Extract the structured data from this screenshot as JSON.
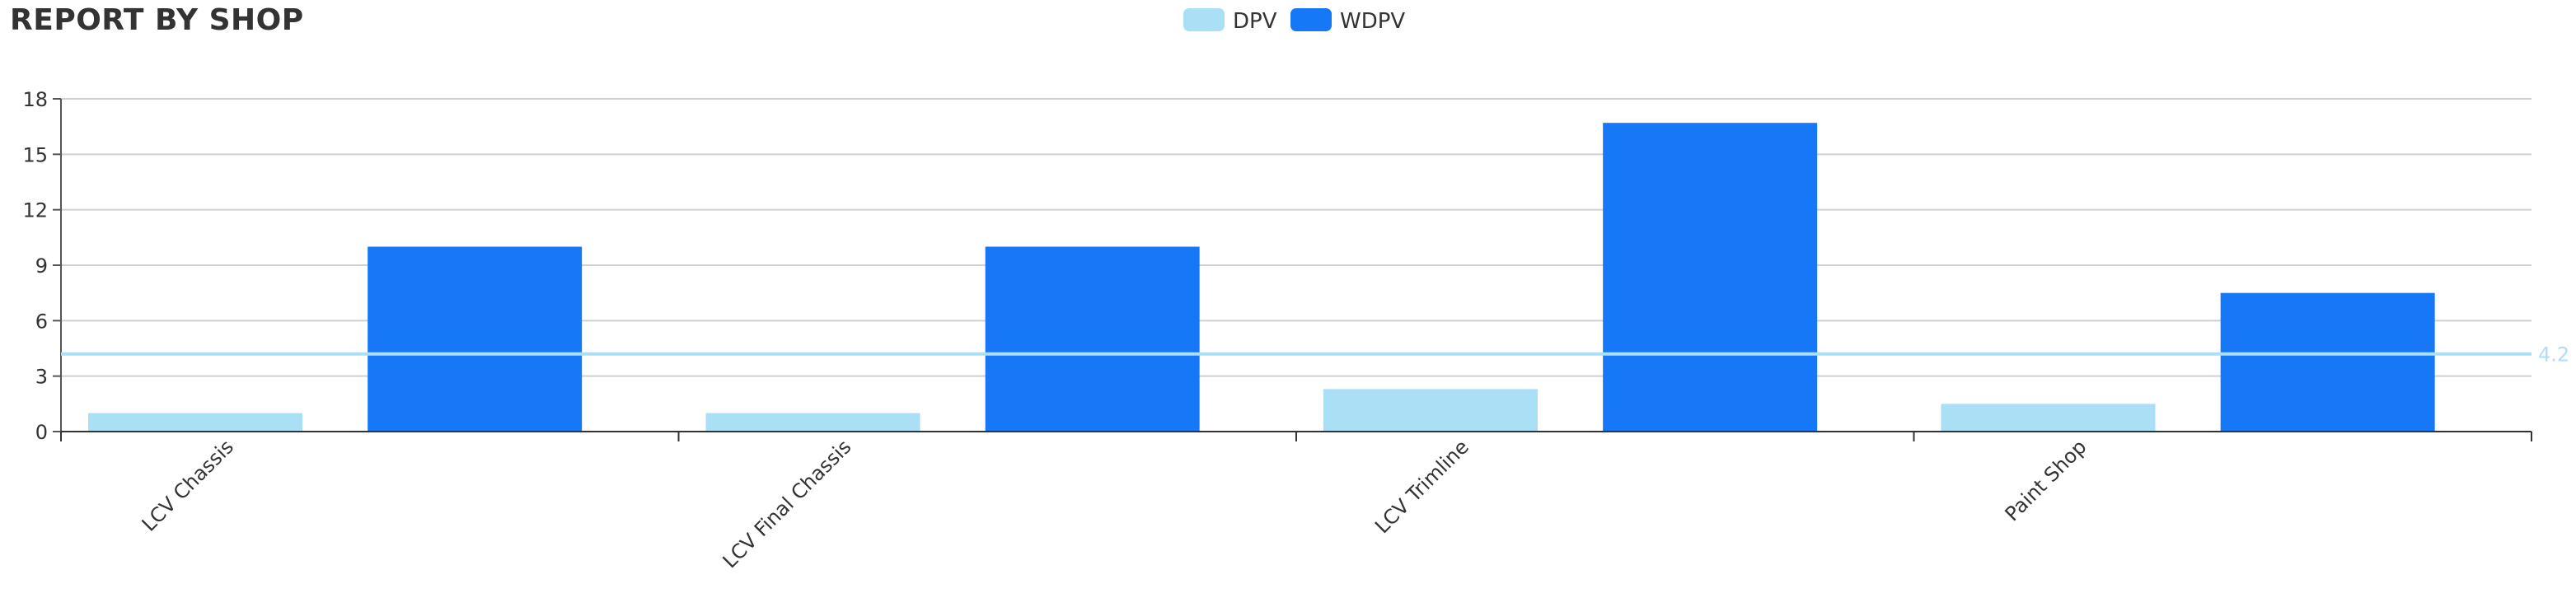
{
  "title": "REPORT BY SHOP",
  "chart_data": {
    "type": "bar",
    "categories": [
      "LCV Chassis",
      "LCV Final Chassis",
      "LCV Trimline",
      "Paint Shop"
    ],
    "series": [
      {
        "name": "DPV",
        "color": "#aadff5",
        "values": [
          1.0,
          1.0,
          2.3,
          1.5
        ]
      },
      {
        "name": "WDPV",
        "color": "#1677f7",
        "values": [
          10.0,
          10.0,
          16.7,
          7.5
        ]
      }
    ],
    "ylim": [
      0,
      18
    ],
    "yticks": [
      0,
      3,
      6,
      9,
      12,
      15,
      18
    ],
    "grid": true,
    "legend_position": "top-center",
    "reference_line": {
      "value": 4.2,
      "label": "4.2",
      "color": "#aadff5"
    },
    "xlabel": "",
    "ylabel": ""
  }
}
